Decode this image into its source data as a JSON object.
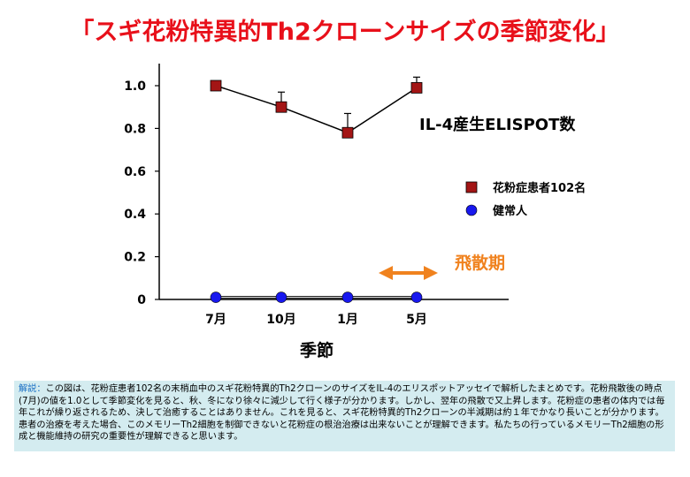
{
  "title": "「スギ花粉特異的Th2クローンサイズの季節変化」",
  "chart_data": {
    "type": "line",
    "categories": [
      "7月",
      "10月",
      "1月",
      "5月"
    ],
    "xlabel": "季節",
    "ylabel": "",
    "ylim": [
      0,
      1.0
    ],
    "yticks": [
      "0",
      "0.2",
      "0.4",
      "0.6",
      "0.8",
      "1.0"
    ],
    "ytick_values": [
      0,
      0.2,
      0.4,
      0.6,
      0.8,
      1.0
    ],
    "annotation": "IL-4産生ELISPOT数",
    "series": [
      {
        "name": "花粉症患者102名",
        "values": [
          1.0,
          0.9,
          0.78,
          0.99
        ],
        "error": [
          0,
          0.07,
          0.09,
          0.05
        ],
        "color": "#a31515",
        "marker": "square"
      },
      {
        "name": "健常人",
        "values": [
          0.01,
          0.01,
          0.01,
          0.01
        ],
        "color": "#1818ee",
        "marker": "circle"
      }
    ],
    "period_label": "飛散期",
    "period_color": "#f0821e"
  },
  "description": {
    "lead": "解説：",
    "text": "この図は、花粉症患者102名の末梢血中のスギ花粉特異的Th2クローンのサイズをIL-4のエリスポットアッセイで解析したまとめです。花粉飛散後の時点(7月)の値を1.0として季節変化を見ると、秋、冬になり徐々に減少して行く様子が分かります。しかし、翌年の飛散で又上昇します。花粉症の患者の体内では毎年これが繰り返されるため、決して治癒することはありません。これを見ると、スギ花粉特異的Th2クローンの半減期は約１年でかなり長いことが分かります。患者の治療を考えた場合、このメモリーTh2細胞を制御できないと花粉症の根治治療は出来ないことが理解できます。私たちの行っているメモリーTh2細胞の形成と機能維持の研究の重要性が理解できると思います。"
  }
}
